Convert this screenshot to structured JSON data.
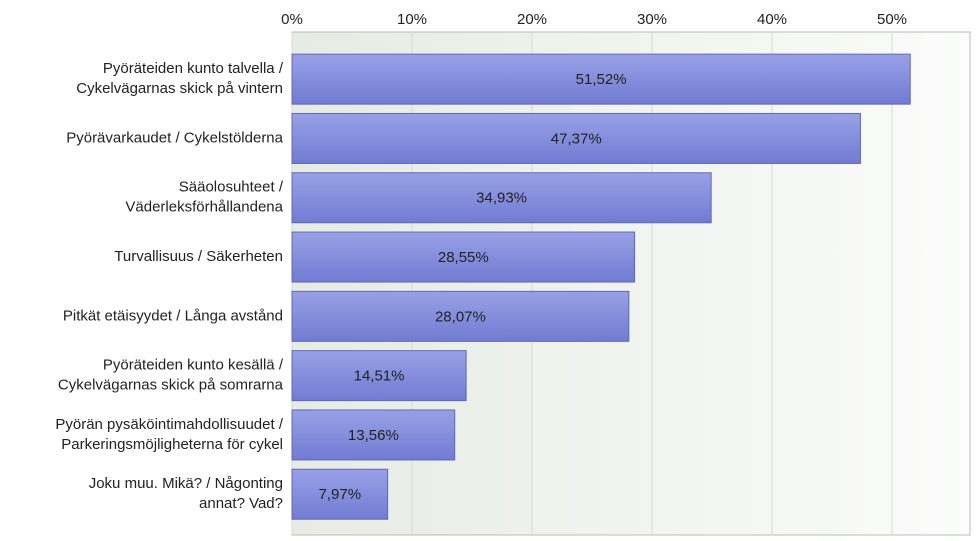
{
  "chart_data": {
    "type": "barh",
    "categories": [
      [
        "Pyöräteiden kunto talvella /",
        "Cykelvägarnas skick på vintern"
      ],
      [
        "Pyörävarkaudet / Cykelstölderna"
      ],
      [
        "Sääolosuhteet /",
        "Väderleksförhållandena"
      ],
      [
        "Turvallisuus / Säkerheten"
      ],
      [
        "Pitkät etäisyydet / Långa avstånd"
      ],
      [
        "Pyöräteiden kunto kesällä /",
        "Cykelvägarnas skick på somrarna"
      ],
      [
        "Pyörän pysäköintimahdollisuudet /",
        "Parkeringsmöjligheterna för cykel"
      ],
      [
        "Joku muu. Mikä? / Någonting",
        "annat? Vad?"
      ]
    ],
    "values": [
      51.52,
      47.37,
      34.93,
      28.55,
      28.07,
      14.51,
      13.56,
      7.97
    ],
    "value_labels": [
      "51,52%",
      "47,37%",
      "34,93%",
      "28,55%",
      "28,07%",
      "14,51%",
      "13,56%",
      "7,97%"
    ],
    "color": "#7f89dc",
    "xlim": [
      0,
      56.5
    ],
    "xticks": [
      {
        "value": 0,
        "label": "0%"
      },
      {
        "value": 10,
        "label": "10%"
      },
      {
        "value": 20,
        "label": "20%"
      },
      {
        "value": 30,
        "label": "30%"
      },
      {
        "value": 40,
        "label": "40%"
      },
      {
        "value": 50,
        "label": "50%"
      }
    ],
    "grid": true
  }
}
